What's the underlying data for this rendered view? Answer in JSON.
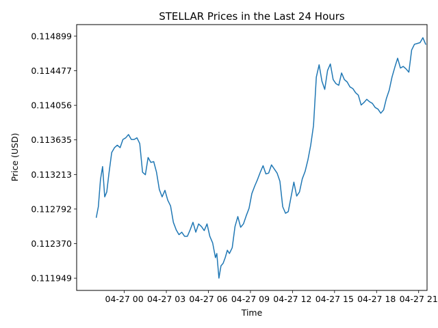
{
  "chart_data": {
    "type": "line",
    "title": "STELLAR Prices in the Last 24 Hours",
    "xlabel": "Time",
    "ylabel": "Price (USD)",
    "grid": false,
    "legend": "none",
    "x_unit": "hours since 04-26 22:00",
    "xlim": [
      -1.4,
      23.6
    ],
    "ylim": [
      0.1118,
      0.11504
    ],
    "x_ticks": [
      {
        "x": 2,
        "label": "04-27 00"
      },
      {
        "x": 5,
        "label": "04-27 03"
      },
      {
        "x": 8,
        "label": "04-27 06"
      },
      {
        "x": 11,
        "label": "04-27 09"
      },
      {
        "x": 14,
        "label": "04-27 12"
      },
      {
        "x": 17,
        "label": "04-27 15"
      },
      {
        "x": 20,
        "label": "04-27 18"
      },
      {
        "x": 23,
        "label": "04-27 21"
      }
    ],
    "y_ticks": [
      {
        "y": 0.111949,
        "label": "0.111949"
      },
      {
        "y": 0.11237,
        "label": "0.112370"
      },
      {
        "y": 0.112792,
        "label": "0.112792"
      },
      {
        "y": 0.113213,
        "label": "0.113213"
      },
      {
        "y": 0.113635,
        "label": "0.113635"
      },
      {
        "y": 0.114056,
        "label": "0.114056"
      },
      {
        "y": 0.114477,
        "label": "0.114477"
      },
      {
        "y": 0.114899,
        "label": "0.114899"
      }
    ],
    "series": [
      {
        "name": "STELLAR",
        "color": "#1f77b4",
        "x": [
          0.0,
          0.15,
          0.3,
          0.45,
          0.6,
          0.75,
          0.9,
          1.1,
          1.3,
          1.5,
          1.7,
          1.9,
          2.1,
          2.3,
          2.5,
          2.7,
          2.9,
          3.1,
          3.3,
          3.5,
          3.7,
          3.9,
          4.1,
          4.3,
          4.5,
          4.7,
          4.9,
          5.1,
          5.3,
          5.5,
          5.7,
          5.9,
          6.1,
          6.3,
          6.5,
          6.7,
          6.9,
          7.1,
          7.3,
          7.5,
          7.7,
          7.9,
          8.1,
          8.3,
          8.5,
          8.6,
          8.75,
          8.9,
          9.05,
          9.2,
          9.35,
          9.5,
          9.7,
          9.9,
          10.1,
          10.3,
          10.5,
          10.7,
          10.9,
          11.1,
          11.3,
          11.5,
          11.7,
          11.9,
          12.1,
          12.3,
          12.5,
          12.7,
          12.9,
          13.1,
          13.3,
          13.5,
          13.7,
          13.9,
          14.1,
          14.3,
          14.5,
          14.7,
          14.9,
          15.1,
          15.3,
          15.5,
          15.7,
          15.9,
          16.1,
          16.3,
          16.5,
          16.7,
          16.9,
          17.1,
          17.3,
          17.5,
          17.7,
          17.9,
          18.1,
          18.3,
          18.5,
          18.7,
          18.9,
          19.1,
          19.3,
          19.5,
          19.7,
          19.9,
          20.1,
          20.3,
          20.5,
          20.7,
          20.9,
          21.1,
          21.3,
          21.5,
          21.7,
          21.9,
          22.1,
          22.3,
          22.5,
          22.7,
          22.9,
          23.1,
          23.3,
          23.5
        ],
        "values": [
          0.11269,
          0.11282,
          0.11315,
          0.11331,
          0.11294,
          0.113,
          0.11322,
          0.11348,
          0.11354,
          0.11357,
          0.11354,
          0.11364,
          0.11366,
          0.1137,
          0.11364,
          0.11364,
          0.11366,
          0.11359,
          0.11324,
          0.11321,
          0.11342,
          0.11336,
          0.11337,
          0.11324,
          0.11303,
          0.11294,
          0.11302,
          0.1129,
          0.11283,
          0.11263,
          0.11254,
          0.11248,
          0.11251,
          0.11246,
          0.11246,
          0.11254,
          0.11263,
          0.11251,
          0.11261,
          0.11258,
          0.11253,
          0.11261,
          0.11246,
          0.11238,
          0.1122,
          0.11225,
          0.11195,
          0.1121,
          0.11213,
          0.1122,
          0.11229,
          0.11225,
          0.11232,
          0.11258,
          0.1127,
          0.11257,
          0.11261,
          0.11271,
          0.1128,
          0.11298,
          0.11307,
          0.11315,
          0.11324,
          0.11332,
          0.11322,
          0.11323,
          0.11333,
          0.11328,
          0.11323,
          0.11313,
          0.11282,
          0.11274,
          0.11276,
          0.11294,
          0.11312,
          0.11295,
          0.113,
          0.11316,
          0.11325,
          0.11339,
          0.11357,
          0.11381,
          0.1144,
          0.11455,
          0.11435,
          0.11425,
          0.11448,
          0.11456,
          0.11437,
          0.11432,
          0.1143,
          0.11445,
          0.11437,
          0.11434,
          0.11428,
          0.11426,
          0.11421,
          0.11418,
          0.11406,
          0.11409,
          0.11413,
          0.1141,
          0.11408,
          0.11403,
          0.11401,
          0.11396,
          0.114,
          0.11414,
          0.11424,
          0.1144,
          0.11452,
          0.11463,
          0.11451,
          0.11453,
          0.1145,
          0.11446,
          0.11473,
          0.1148,
          0.11481,
          0.11482,
          0.11488,
          0.1148
        ]
      }
    ]
  }
}
